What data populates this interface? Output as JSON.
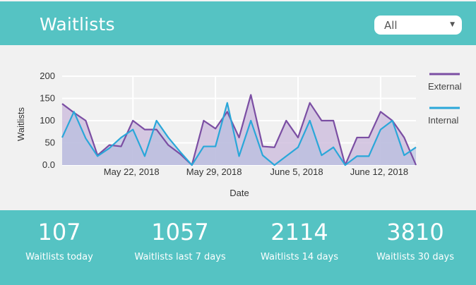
{
  "header": {
    "title": "Waitlists",
    "filter": {
      "selected": "All",
      "caret_icon": "chevron-down-icon"
    }
  },
  "colors": {
    "header_bg": "#55c3c3",
    "external": "#7b4ea3",
    "internal": "#2aa7d9",
    "external_fill": "#c9b8db",
    "internal_fill": "#b3bde0"
  },
  "chart_data": {
    "type": "area",
    "ylabel": "Waitlists",
    "xlabel": "Date",
    "ylim": [
      0,
      200
    ],
    "yticks": [
      "200",
      "150",
      "100",
      "50",
      "0.0"
    ],
    "ytick_values": [
      200,
      150,
      100,
      50,
      0
    ],
    "x_tick_labels": [
      {
        "label": "May 22, 2018",
        "index": 6
      },
      {
        "label": "May 29, 2018",
        "index": 13
      },
      {
        "label": "June 5, 2018",
        "index": 20
      },
      {
        "label": "June 12, 2018",
        "index": 27
      }
    ],
    "grid": true,
    "legend_position": "right",
    "series": [
      {
        "name": "External",
        "values": [
          138,
          118,
          100,
          22,
          45,
          42,
          100,
          80,
          80,
          45,
          25,
          0,
          100,
          82,
          120,
          62,
          158,
          42,
          40,
          100,
          62,
          140,
          100,
          100,
          0,
          62,
          62,
          120,
          100,
          62,
          0
        ]
      },
      {
        "name": "Internal",
        "values": [
          62,
          120,
          60,
          20,
          38,
          62,
          80,
          20,
          100,
          62,
          30,
          0,
          42,
          42,
          140,
          20,
          100,
          22,
          0,
          20,
          40,
          100,
          22,
          40,
          0,
          20,
          20,
          80,
          100,
          22,
          40
        ]
      }
    ]
  },
  "stats": [
    {
      "value": "107",
      "label": "Waitlists today"
    },
    {
      "value": "1057",
      "label": "Waitlists last 7 days"
    },
    {
      "value": "2114",
      "label": "Waitlists 14 days"
    },
    {
      "value": "3810",
      "label": "Waitlists 30 days"
    }
  ]
}
